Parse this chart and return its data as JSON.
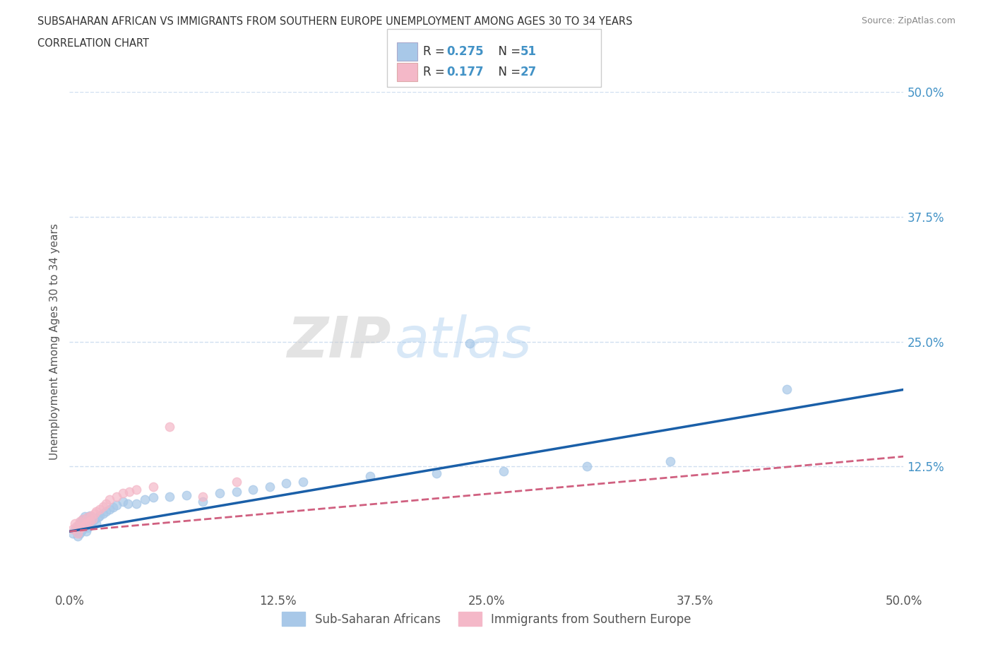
{
  "title_line1": "SUBSAHARAN AFRICAN VS IMMIGRANTS FROM SOUTHERN EUROPE UNEMPLOYMENT AMONG AGES 30 TO 34 YEARS",
  "title_line2": "CORRELATION CHART",
  "source_text": "Source: ZipAtlas.com",
  "ylabel": "Unemployment Among Ages 30 to 34 years",
  "xlim": [
    0.0,
    0.5
  ],
  "ylim": [
    0.0,
    0.5
  ],
  "xtick_labels": [
    "0.0%",
    "12.5%",
    "25.0%",
    "37.5%",
    "50.0%"
  ],
  "xtick_vals": [
    0.0,
    0.125,
    0.25,
    0.375,
    0.5
  ],
  "ytick_labels": [
    "50.0%",
    "37.5%",
    "25.0%",
    "12.5%"
  ],
  "ytick_vals": [
    0.5,
    0.375,
    0.25,
    0.125
  ],
  "watermark": "ZIPatlas",
  "legend_r1": "0.275",
  "legend_n1": "51",
  "legend_r2": "0.177",
  "legend_n2": "27",
  "color_blue": "#a8c8e8",
  "color_pink": "#f4b8c8",
  "color_blue_text": "#4292c6",
  "line_blue": "#1a5fa8",
  "line_pink": "#d06080",
  "grid_color": "#d0dff0",
  "background_color": "#ffffff",
  "blue_scatter_x": [
    0.002,
    0.003,
    0.004,
    0.005,
    0.005,
    0.006,
    0.006,
    0.007,
    0.007,
    0.008,
    0.008,
    0.009,
    0.009,
    0.01,
    0.01,
    0.011,
    0.011,
    0.012,
    0.012,
    0.013,
    0.014,
    0.015,
    0.016,
    0.017,
    0.018,
    0.02,
    0.022,
    0.024,
    0.026,
    0.028,
    0.032,
    0.035,
    0.04,
    0.045,
    0.05,
    0.06,
    0.07,
    0.08,
    0.09,
    0.1,
    0.11,
    0.12,
    0.13,
    0.14,
    0.18,
    0.22,
    0.26,
    0.31,
    0.36,
    0.43,
    0.24
  ],
  "blue_scatter_y": [
    0.058,
    0.062,
    0.06,
    0.055,
    0.065,
    0.058,
    0.068,
    0.06,
    0.07,
    0.062,
    0.072,
    0.065,
    0.075,
    0.06,
    0.07,
    0.064,
    0.074,
    0.066,
    0.076,
    0.068,
    0.07,
    0.072,
    0.068,
    0.074,
    0.076,
    0.078,
    0.08,
    0.082,
    0.084,
    0.086,
    0.09,
    0.088,
    0.088,
    0.092,
    0.094,
    0.095,
    0.096,
    0.09,
    0.098,
    0.1,
    0.102,
    0.105,
    0.108,
    0.11,
    0.115,
    0.118,
    0.12,
    0.125,
    0.13,
    0.202,
    0.248
  ],
  "pink_scatter_x": [
    0.002,
    0.003,
    0.004,
    0.005,
    0.006,
    0.007,
    0.008,
    0.009,
    0.01,
    0.011,
    0.012,
    0.013,
    0.014,
    0.015,
    0.016,
    0.018,
    0.02,
    0.022,
    0.024,
    0.028,
    0.032,
    0.036,
    0.04,
    0.05,
    0.06,
    0.08,
    0.1
  ],
  "pink_scatter_y": [
    0.062,
    0.068,
    0.065,
    0.058,
    0.07,
    0.064,
    0.072,
    0.066,
    0.068,
    0.074,
    0.07,
    0.076,
    0.072,
    0.078,
    0.08,
    0.082,
    0.085,
    0.088,
    0.092,
    0.095,
    0.098,
    0.1,
    0.102,
    0.105,
    0.165,
    0.095,
    0.11
  ],
  "blue_trend_x": [
    0.0,
    0.5
  ],
  "blue_trend_y": [
    0.06,
    0.202
  ],
  "pink_trend_x": [
    0.0,
    0.5
  ],
  "pink_trend_y": [
    0.06,
    0.135
  ]
}
